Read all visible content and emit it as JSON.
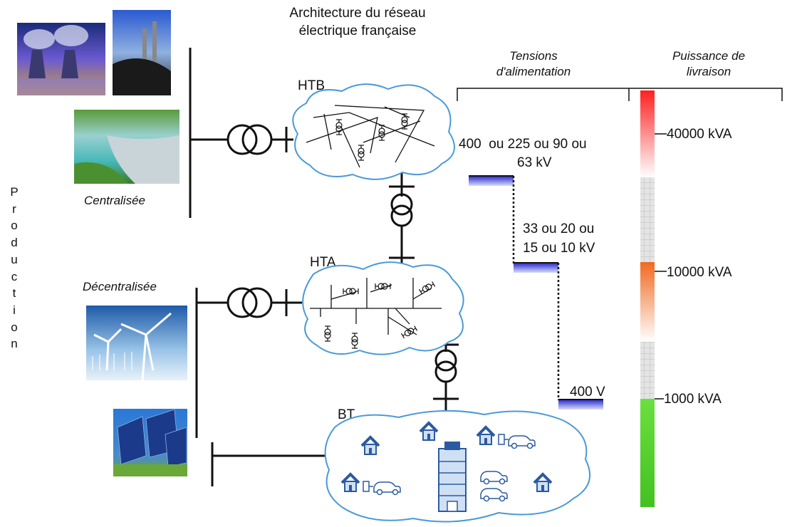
{
  "title": [
    "Architecture du réseau",
    "électrique française"
  ],
  "headers": {
    "tensions": [
      "Tensions",
      "d'alimentation"
    ],
    "puissance": [
      "Puissance de",
      "livraison"
    ]
  },
  "networks": {
    "htb": "HTB",
    "hta": "HTA",
    "bt": "BT"
  },
  "production": {
    "vertical_label": [
      "P",
      "r",
      "o",
      "d",
      "u",
      "c",
      "t",
      "i",
      "o",
      "n"
    ],
    "centralised": "Centralisée",
    "decentralised": "Décentralisée"
  },
  "tensions": {
    "htb": [
      "400  ou 225 ou 90 ou",
      "63 kV"
    ],
    "hta": [
      "33 ou 20 ou",
      "15 ou 10 kV"
    ],
    "bt": "400 V"
  },
  "power_levels": [
    "40000 kVA",
    "10000 kVA",
    "1000 kVA"
  ],
  "power_bar_segments": [
    {
      "name": "htb",
      "color_top": "#ff2a2a",
      "color_bottom": "#ffffff"
    },
    {
      "name": "hta",
      "color_top": "#f06a20",
      "color_bottom": "#ffffff"
    },
    {
      "name": "bt",
      "color_top": "#66dd33",
      "color_bottom": "#55cc22"
    }
  ],
  "colors": {
    "cloud_stroke": "#4a9ad8",
    "step_blue": "#2233cc",
    "house_blue": "#3060b0"
  },
  "images": [
    "nuclear-plant-photo",
    "coal-plant-photo",
    "dam-photo",
    "wind-farm-photo",
    "solar-panels-photo"
  ]
}
